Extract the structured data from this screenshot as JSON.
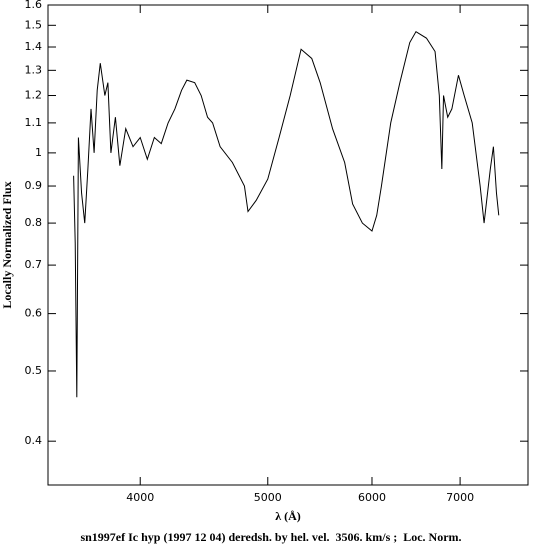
{
  "chart_data": {
    "type": "line",
    "xlabel": "λ (Å)",
    "ylabel": "Locally Normalized Flux",
    "caption": "sn1997ef Ic hyp (1997 12 04) deredsh. by hel. vel.  3506. km/s ;  Loc. Norm.",
    "xlog": true,
    "ylog": true,
    "xlim": [
      3404,
      7883
    ],
    "ylim": [
      0.348,
      1.6
    ],
    "xticks": [
      4000,
      5000,
      6000,
      7000
    ],
    "yticks": [
      0.4,
      0.5,
      0.6,
      0.7,
      0.8,
      0.9,
      1,
      1.1,
      1.2,
      1.3,
      1.4,
      1.5,
      1.6
    ],
    "series": [
      {
        "color": "#000000",
        "x": [
          3560,
          3570,
          3580,
          3590,
          3610,
          3630,
          3650,
          3670,
          3690,
          3710,
          3730,
          3760,
          3780,
          3800,
          3830,
          3860,
          3900,
          3950,
          4000,
          4050,
          4100,
          4150,
          4200,
          4250,
          4300,
          4340,
          4400,
          4450,
          4500,
          4540,
          4600,
          4700,
          4800,
          4830,
          4900,
          5000,
          5100,
          5200,
          5300,
          5400,
          5480,
          5600,
          5720,
          5800,
          5900,
          6000,
          6050,
          6100,
          6200,
          6300,
          6410,
          6480,
          6600,
          6700,
          6750,
          6780,
          6800,
          6850,
          6900,
          6980,
          7050,
          7150,
          7250,
          7300,
          7380,
          7420,
          7460,
          7490
        ],
        "values": [
          0.93,
          0.75,
          0.46,
          1.05,
          0.88,
          0.8,
          0.95,
          1.15,
          1.0,
          1.22,
          1.33,
          1.2,
          1.25,
          1.0,
          1.12,
          0.96,
          1.08,
          1.02,
          1.05,
          0.98,
          1.05,
          1.03,
          1.1,
          1.15,
          1.22,
          1.26,
          1.25,
          1.2,
          1.12,
          1.1,
          1.02,
          0.97,
          0.9,
          0.83,
          0.86,
          0.92,
          1.05,
          1.2,
          1.39,
          1.35,
          1.25,
          1.08,
          0.97,
          0.85,
          0.8,
          0.78,
          0.82,
          0.9,
          1.1,
          1.25,
          1.42,
          1.47,
          1.44,
          1.38,
          1.2,
          0.95,
          1.2,
          1.12,
          1.15,
          1.28,
          1.2,
          1.1,
          0.9,
          0.8,
          0.95,
          1.02,
          0.88,
          0.82
        ]
      }
    ]
  }
}
